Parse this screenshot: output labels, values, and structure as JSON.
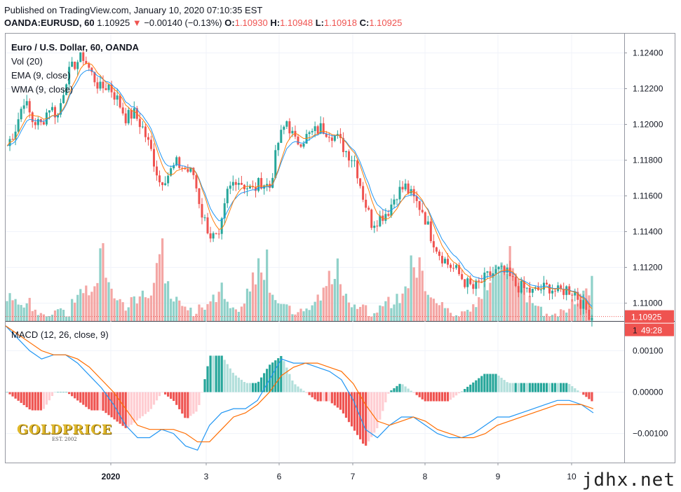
{
  "header": {
    "published": "Published on TradingView.com, January 10, 2020 07:10:35 EST",
    "symbol": "OANDA:EURUSD, 60",
    "last": "1.10925",
    "arrow": "▼",
    "change": "−0.00140 (−0.13%)",
    "o_label": "O:",
    "o_value": "1.10930",
    "h_label": "H:",
    "h_value": "1.10948",
    "l_label": "L:",
    "l_value": "1.10918",
    "c_label": "C:",
    "c_value": "1.10925"
  },
  "legend": {
    "title": "Euro / U.S. Dollar, 60, OANDA",
    "vol": "Vol (20)",
    "ema": "EMA (9, close)",
    "wma": "WMA (9, close)",
    "macd": "MACD (12, 26, close, 9)"
  },
  "price_labels": {
    "current": "1.10925",
    "countdown": "49:28",
    "partial_tick": "1"
  },
  "logo": {
    "main": "GOLDPRICE",
    "sub": "EST. 2002"
  },
  "watermark": "jdhx.net",
  "colors": {
    "up": "#26a69a",
    "down": "#ef5350",
    "vol_up": "#8fd1c9",
    "vol_down": "#f4a6a4",
    "ema": "#2196f3",
    "wma": "#ff7f0e",
    "macd": "#2196f3",
    "signal": "#ff6d00"
  },
  "chart_data": [
    {
      "type": "candlestick",
      "title": "Euro / U.S. Dollar, 60, OANDA",
      "y_ticks": [
        "1.12400",
        "1.12200",
        "1.12000",
        "1.11800",
        "1.11600",
        "1.11400",
        "1.11200",
        "1.11000"
      ],
      "x_ticks": [
        "2020",
        "3",
        "6",
        "7",
        "8",
        "9",
        "10"
      ],
      "ylim": [
        1.109,
        1.125
      ],
      "current_price": 1.10925,
      "series": [
        {
          "name": "Euro / U.S. Dollar",
          "close_path": [
            [
              0,
              1.1188
            ],
            [
              3,
              1.1198
            ],
            [
              6,
              1.1214
            ],
            [
              9,
              1.1202
            ],
            [
              12,
              1.12
            ],
            [
              15,
              1.121
            ],
            [
              18,
              1.1205
            ],
            [
              21,
              1.1226
            ],
            [
              24,
              1.1234
            ],
            [
              27,
              1.1238
            ],
            [
              30,
              1.1228
            ],
            [
              33,
              1.122
            ],
            [
              36,
              1.1222
            ],
            [
              39,
              1.1214
            ],
            [
              42,
              1.1204
            ],
            [
              45,
              1.1206
            ],
            [
              48,
              1.1198
            ],
            [
              51,
              1.1185
            ],
            [
              54,
              1.1168
            ],
            [
              57,
              1.1172
            ],
            [
              60,
              1.1178
            ],
            [
              63,
              1.1175
            ],
            [
              66,
              1.1172
            ],
            [
              69,
              1.115
            ],
            [
              72,
              1.1138
            ],
            [
              75,
              1.1135
            ],
            [
              78,
              1.1162
            ],
            [
              81,
              1.117
            ],
            [
              84,
              1.1166
            ],
            [
              87,
              1.1163
            ],
            [
              90,
              1.1168
            ],
            [
              93,
              1.1165
            ],
            [
              96,
              1.119
            ],
            [
              99,
              1.1202
            ],
            [
              102,
              1.119
            ],
            [
              105,
              1.1192
            ],
            [
              108,
              1.1195
            ],
            [
              111,
              1.1198
            ],
            [
              114,
              1.1196
            ],
            [
              117,
              1.1192
            ],
            [
              120,
              1.1185
            ],
            [
              123,
              1.118
            ],
            [
              126,
              1.116
            ],
            [
              129,
              1.1145
            ],
            [
              132,
              1.1148
            ],
            [
              135,
              1.1152
            ],
            [
              138,
              1.1162
            ],
            [
              141,
              1.1165
            ],
            [
              144,
              1.1158
            ],
            [
              147,
              1.1152
            ],
            [
              150,
              1.1138
            ],
            [
              153,
              1.1128
            ],
            [
              156,
              1.1122
            ],
            [
              159,
              1.1118
            ],
            [
              162,
              1.1112
            ],
            [
              165,
              1.1108
            ],
            [
              168,
              1.1112
            ],
            [
              171,
              1.1116
            ],
            [
              174,
              1.1118
            ],
            [
              177,
              1.1116
            ],
            [
              180,
              1.111
            ],
            [
              183,
              1.1108
            ],
            [
              186,
              1.1106
            ],
            [
              189,
              1.1108
            ],
            [
              192,
              1.1109
            ],
            [
              195,
              1.1106
            ],
            [
              198,
              1.1108
            ],
            [
              201,
              1.1106
            ],
            [
              204,
              1.1098
            ],
            [
              207,
              1.10925
            ]
          ]
        },
        {
          "name": "EMA (9, close)"
        },
        {
          "name": "WMA (9, close)"
        }
      ]
    },
    {
      "type": "bar",
      "title": "Vol (20)",
      "note": "hourly volume bars, relative heights",
      "values": [
        4,
        3,
        2,
        3,
        2,
        1,
        1,
        1,
        2,
        2,
        1,
        3,
        4,
        6,
        5,
        8,
        10,
        6,
        4,
        3,
        2,
        3,
        3,
        4,
        5,
        8,
        10,
        7,
        4,
        3,
        2,
        2,
        1,
        2,
        3,
        4,
        5,
        3,
        2,
        2,
        3,
        4,
        6,
        8,
        9,
        5,
        4,
        3,
        2,
        1,
        2,
        2,
        3,
        4,
        5,
        8,
        10,
        6,
        4,
        3,
        2,
        2,
        1,
        1,
        2,
        3,
        3,
        4,
        6,
        8,
        9,
        7,
        5,
        4,
        3,
        2,
        1,
        1,
        2,
        2,
        3,
        4,
        5,
        6,
        8,
        9,
        10,
        7,
        5,
        4,
        3,
        2,
        1,
        1,
        1,
        2,
        2,
        3,
        4,
        5,
        6
      ]
    },
    {
      "type": "line",
      "title": "MACD (12, 26, close, 9)",
      "y_ticks": [
        "0.00100",
        "0.00000",
        "−0.00100"
      ],
      "ylim": [
        -0.0017,
        0.0017
      ],
      "series": [
        {
          "name": "MACD",
          "values": [
            0.0016,
            0.0013,
            0.001,
            0.0008,
            0.0009,
            0.0009,
            0.0007,
            0.0004,
            0.0001,
            -0.0003,
            -0.0008,
            -0.0011,
            -0.0011,
            -0.0009,
            -0.001,
            -0.0013,
            -0.0014,
            -0.0008,
            -0.0005,
            -0.0004,
            -0.0004,
            -0.0002,
            0.0003,
            0.0008,
            0.0007,
            0.0007,
            0.0006,
            0.0005,
            0.0003,
            -0.0002,
            -0.0009,
            -0.0011,
            -0.0008,
            -0.0006,
            -0.0006,
            -0.0008,
            -0.001,
            -0.0011,
            -0.0011,
            -0.001,
            -0.0008,
            -0.0006,
            -0.0006,
            -0.0005,
            -0.0004,
            -0.0003,
            -0.0002,
            -0.0002,
            -0.0003,
            -0.0005
          ]
        },
        {
          "name": "Signal",
          "values": [
            0.0016,
            0.0014,
            0.0012,
            0.001,
            0.0009,
            0.0009,
            0.0008,
            0.0006,
            0.0003,
            0.0,
            -0.0004,
            -0.0008,
            -0.0009,
            -0.0009,
            -0.0009,
            -0.001,
            -0.0012,
            -0.0012,
            -0.0009,
            -0.0006,
            -0.0005,
            -0.0003,
            0.0,
            0.0004,
            0.0006,
            0.0007,
            0.0007,
            0.0006,
            0.0005,
            0.0002,
            -0.0003,
            -0.0007,
            -0.0008,
            -0.0007,
            -0.0006,
            -0.0007,
            -0.0009,
            -0.001,
            -0.0011,
            -0.0011,
            -0.001,
            -0.0008,
            -0.0007,
            -0.0006,
            -0.0005,
            -0.0004,
            -0.0003,
            -0.0003,
            -0.0003,
            -0.0004
          ]
        }
      ]
    }
  ]
}
